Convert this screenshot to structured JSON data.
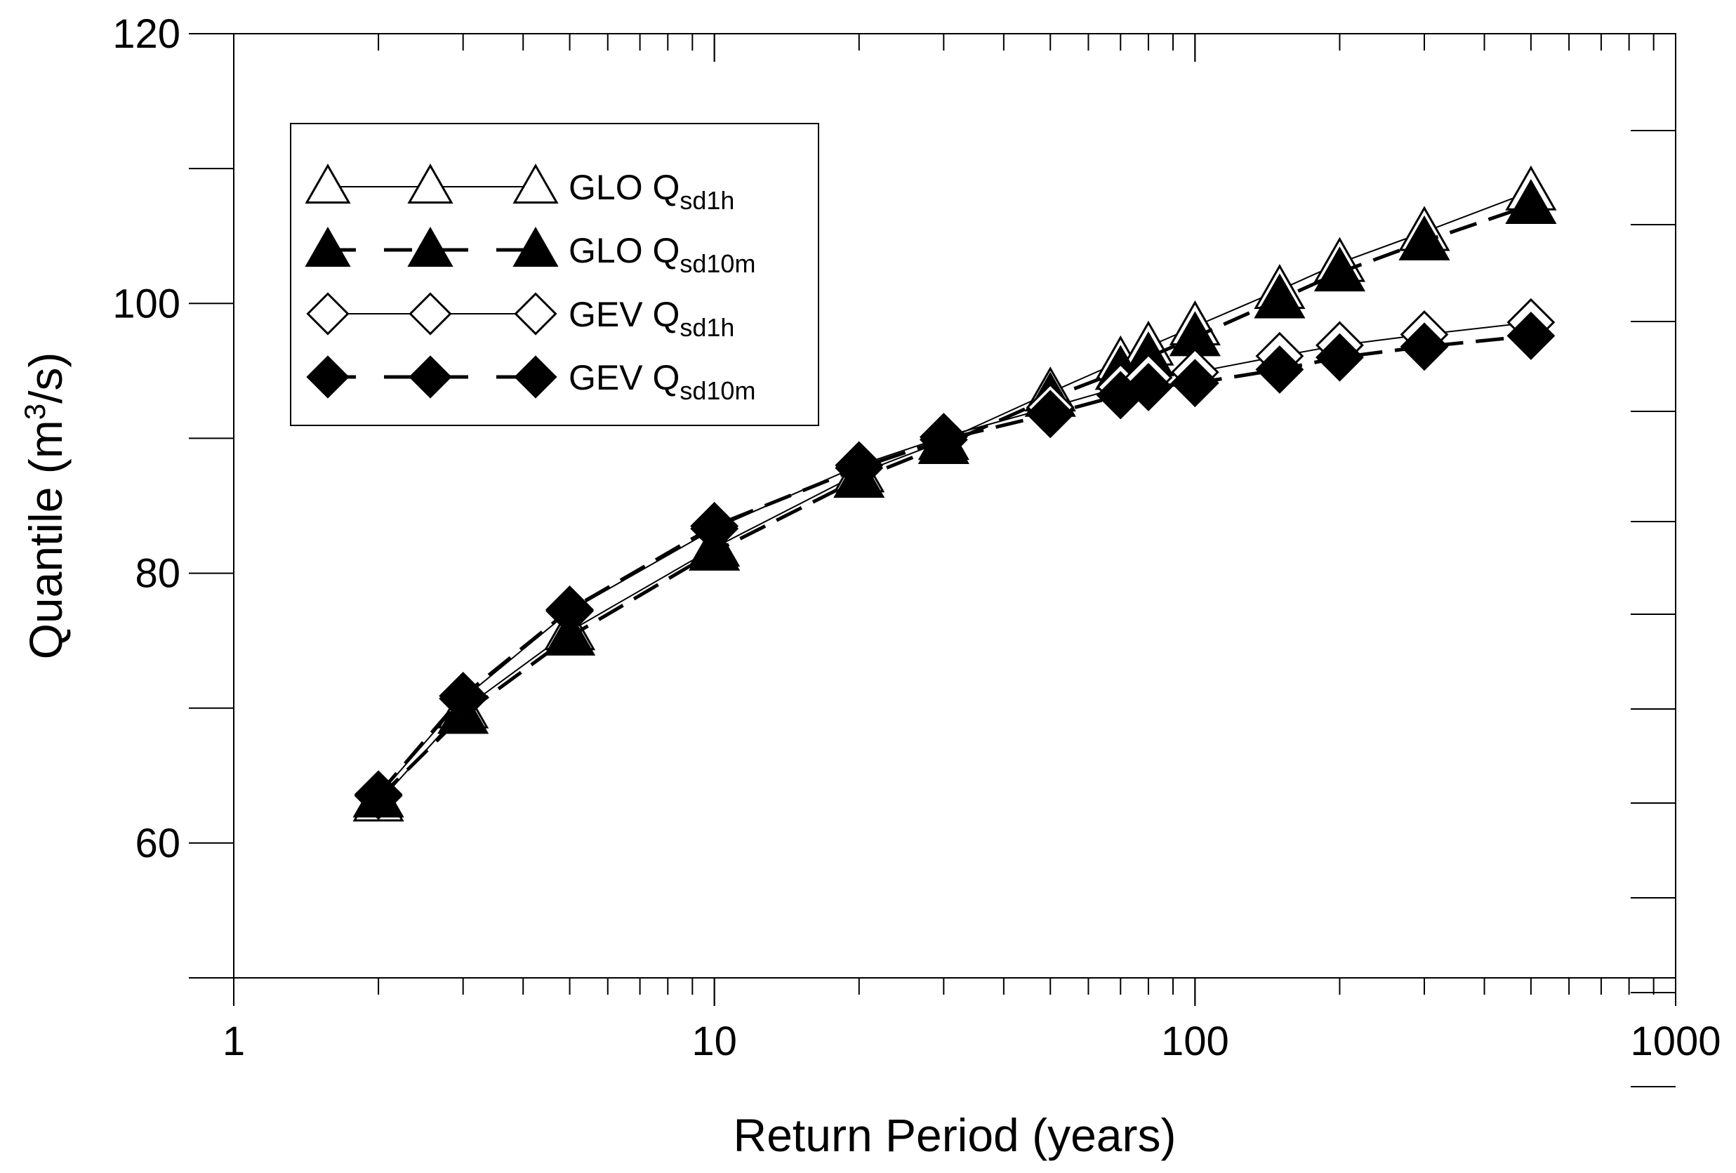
{
  "chart_data": {
    "type": "line",
    "xlabel": "Return Period (years)",
    "ylabel_main": "Quantile (m",
    "ylabel_sup": "3",
    "ylabel_end": "/s)",
    "x_scale": "log",
    "xlim": [
      1,
      1000
    ],
    "ylim": [
      50,
      120
    ],
    "x_ticks": [
      1,
      10,
      100,
      1000
    ],
    "x_tick_labels": [
      "1",
      "10",
      "100",
      "1000"
    ],
    "y_ticks": [
      60,
      80,
      100,
      120
    ],
    "y_tick_labels": [
      "60",
      "80",
      "100",
      "120"
    ],
    "legend_position": "top-left",
    "x": [
      2,
      3,
      5,
      10,
      20,
      30,
      50,
      70,
      80,
      100,
      150,
      200,
      300,
      500
    ],
    "series": [
      {
        "name_main": "GLO Q",
        "name_sub": "sd1h",
        "marker": "triangle-open",
        "line": "solid",
        "values": [
          63.0,
          69.9,
          75.7,
          81.9,
          87.4,
          89.8,
          93.4,
          95.7,
          96.8,
          98.3,
          101.0,
          103.0,
          105.3,
          108.3
        ]
      },
      {
        "name_main": "GLO Q",
        "name_sub": "sd10m",
        "marker": "triangle-filled",
        "line": "dashed",
        "values": [
          63.3,
          69.5,
          75.3,
          81.6,
          87.0,
          89.5,
          93.0,
          95.0,
          96.0,
          97.5,
          100.3,
          102.3,
          104.6,
          107.3
        ]
      },
      {
        "name_main": "GEV Q",
        "name_sub": "sd1h",
        "marker": "diamond-open",
        "line": "solid",
        "values": [
          63.5,
          70.7,
          77.2,
          83.3,
          88.0,
          90.1,
          92.3,
          93.8,
          94.5,
          94.9,
          96.1,
          96.9,
          97.7,
          98.6
        ]
      },
      {
        "name_main": "GEV Q",
        "name_sub": "sd10m",
        "marker": "diamond-filled",
        "line": "dashed",
        "values": [
          63.6,
          70.9,
          77.3,
          83.5,
          87.8,
          89.9,
          91.8,
          93.2,
          93.8,
          94.1,
          95.1,
          96.0,
          96.8,
          97.6
        ]
      }
    ]
  }
}
